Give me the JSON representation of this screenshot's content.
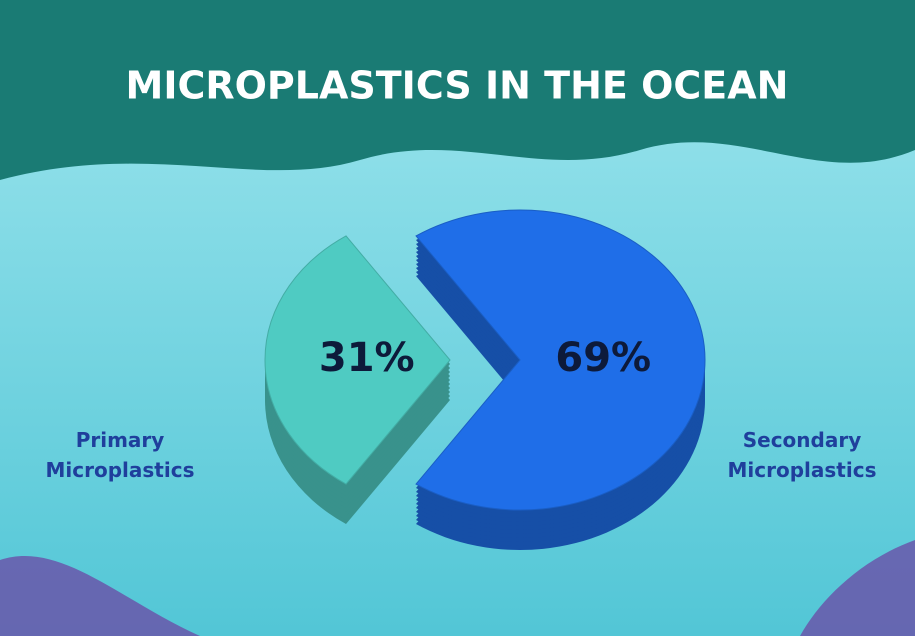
{
  "chart_data": {
    "type": "pie",
    "title": "MICROPLASTICS IN THE OCEAN",
    "categories": [
      "Primary Microplastics",
      "Secondary Microplastics"
    ],
    "values": [
      31,
      69
    ],
    "value_labels": [
      "31%",
      "69%"
    ],
    "colors": [
      "#4fcbc2",
      "#1f6ee8"
    ]
  }
}
